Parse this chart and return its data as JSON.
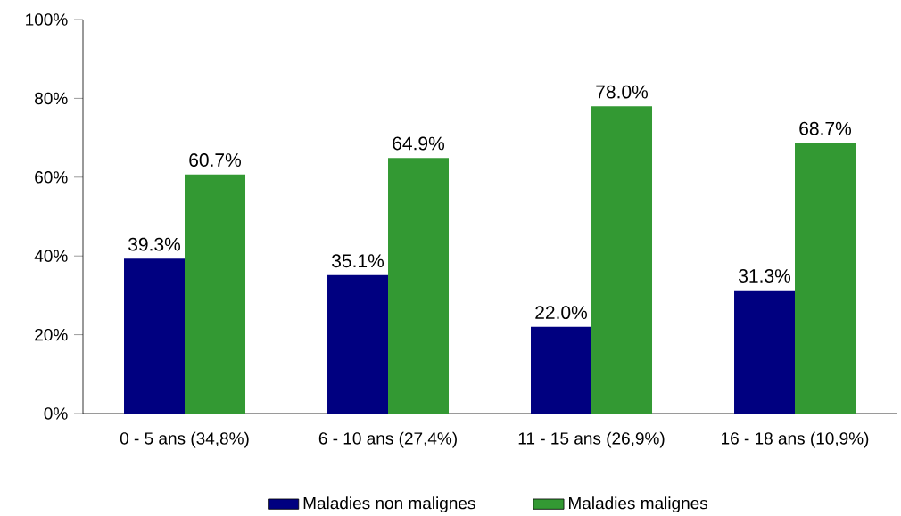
{
  "chart_data": {
    "type": "bar",
    "categories": [
      "0 - 5 ans (34,8%)",
      "6 - 10 ans (27,4%)",
      "11 - 15 ans (26,9%)",
      "16 - 18 ans (10,9%)"
    ],
    "series": [
      {
        "name": "Maladies non malignes",
        "color": "#000080",
        "values": [
          39.3,
          35.1,
          22.0,
          31.3
        ],
        "value_labels": [
          "39.3%",
          "35.1%",
          "22.0%",
          "31.3%"
        ]
      },
      {
        "name": "Maladies malignes",
        "color": "#339933",
        "values": [
          60.7,
          64.9,
          78.0,
          68.7
        ],
        "value_labels": [
          "60.7%",
          "64.9%",
          "78.0%",
          "68.7%"
        ]
      }
    ],
    "ylim": [
      0,
      100
    ],
    "yticks": [
      {
        "value": 0,
        "label": "0%"
      },
      {
        "value": 20,
        "label": "20%"
      },
      {
        "value": 40,
        "label": "40%"
      },
      {
        "value": 60,
        "label": "60%"
      },
      {
        "value": 80,
        "label": "80%"
      },
      {
        "value": 100,
        "label": "100%"
      }
    ],
    "legend": "bottom",
    "grid": false
  }
}
